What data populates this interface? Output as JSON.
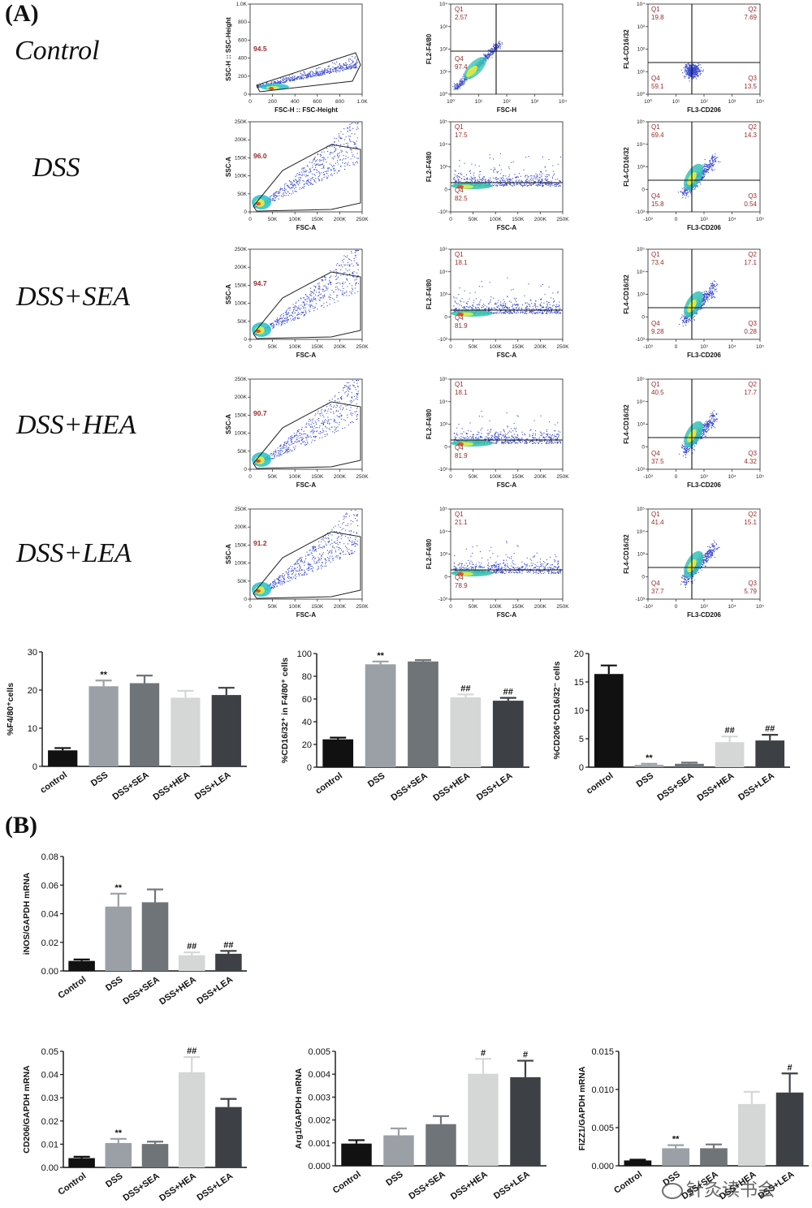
{
  "panels": {
    "a": "(A)",
    "b": "(B)"
  },
  "groups": [
    "Control",
    "DSS",
    "DSS+SEA",
    "DSS+HEA",
    "DSS+LEA"
  ],
  "watermark": "针灸读书会",
  "flow_rows": [
    {
      "gate": {
        "xlabel": "FSC-H :: FSC-Height",
        "ylabel": "SSC-H :: SSC-Height",
        "xticks": [
          "0",
          "200",
          "400",
          "600",
          "800",
          "1.0K"
        ],
        "yticks": [
          "0",
          "200",
          "400",
          "600",
          "800",
          "1.0K"
        ],
        "value": "94.5"
      },
      "f480": {
        "xlabel": "FSC-H",
        "ylabel": "FL2-F4/80",
        "xticks": [
          "10⁰",
          "10¹",
          "10²",
          "10³",
          "10⁴"
        ],
        "yticks": [
          "10⁰",
          "10¹",
          "10²",
          "10³",
          "10⁴"
        ],
        "q1": "2.57",
        "q4": "97.4"
      },
      "quad": {
        "xlabel": "FL3-CD206",
        "ylabel": "FL4-CD16/32",
        "xticks": [
          "10⁰",
          "10¹",
          "10²",
          "10³",
          "10⁴"
        ],
        "yticks": [
          "10⁰",
          "10¹",
          "10²",
          "10³",
          "10⁴"
        ],
        "q1": "19.8",
        "q2": "7.69",
        "q3": "13.5",
        "q4": "59.1"
      }
    },
    {
      "gate": {
        "xlabel": "FSC-A",
        "ylabel": "SSC-A",
        "xticks": [
          "0",
          "50K",
          "100K",
          "150K",
          "200K",
          "250K"
        ],
        "yticks": [
          "0",
          "50K",
          "100K",
          "150K",
          "200K",
          "250K"
        ],
        "value": "96.0"
      },
      "f480": {
        "xlabel": "FSC-A",
        "ylabel": "FL2-F4/80",
        "xticks": [
          "0",
          "50K",
          "100K",
          "150K",
          "200K",
          "250K"
        ],
        "yticks": [
          "-10³",
          "0",
          "10³",
          "10⁴",
          "10⁵"
        ],
        "q1": "17.5",
        "q4": "82.5"
      },
      "quad": {
        "xlabel": "FL3-CD206",
        "ylabel": "FL4-CD16/32",
        "xticks": [
          "-10³",
          "0",
          "10³",
          "10⁴",
          "10⁵"
        ],
        "yticks": [
          "-10³",
          "0",
          "10³",
          "10⁴",
          "10⁵"
        ],
        "q1": "69.4",
        "q2": "14.3",
        "q3": "0.54",
        "q4": "15.8"
      }
    },
    {
      "gate": {
        "xlabel": "FSC-A",
        "ylabel": "SSC-A",
        "xticks": [
          "0",
          "50K",
          "100K",
          "150K",
          "200K",
          "250K"
        ],
        "yticks": [
          "0",
          "50K",
          "100K",
          "150K",
          "200K",
          "250K"
        ],
        "value": "94.7"
      },
      "f480": {
        "xlabel": "FSC-A",
        "ylabel": "FL2-F4/80",
        "xticks": [
          "0",
          "50K",
          "100K",
          "150K",
          "200K",
          "250K"
        ],
        "yticks": [
          "-10³",
          "0",
          "10³",
          "10⁴",
          "10⁵"
        ],
        "q1": "18.1",
        "q4": "81.9"
      },
      "quad": {
        "xlabel": "FL3-CD206",
        "ylabel": "FL4-CD16/32",
        "xticks": [
          "-10³",
          "0",
          "10³",
          "10⁴",
          "10⁵"
        ],
        "yticks": [
          "-10³",
          "0",
          "10³",
          "10⁴",
          "10⁵"
        ],
        "q1": "73.4",
        "q2": "17.1",
        "q3": "0.28",
        "q4": "9.28"
      }
    },
    {
      "gate": {
        "xlabel": "FSC-A",
        "ylabel": "SSC-A",
        "xticks": [
          "0",
          "50K",
          "100K",
          "150K",
          "200K",
          "250K"
        ],
        "yticks": [
          "0",
          "50K",
          "100K",
          "150K",
          "200K",
          "250K"
        ],
        "value": "90.7"
      },
      "f480": {
        "xlabel": "FSC-A",
        "ylabel": "FL2-F4/80",
        "xticks": [
          "0",
          "50K",
          "100K",
          "150K",
          "200K",
          "250K"
        ],
        "yticks": [
          "-10³",
          "0",
          "10³",
          "10⁴",
          "10⁵"
        ],
        "q1": "18.1",
        "q4": "81.9"
      },
      "quad": {
        "xlabel": "FL3-CD206",
        "ylabel": "FL4-CD16/32",
        "xticks": [
          "-10³",
          "0",
          "10³",
          "10⁴",
          "10⁵"
        ],
        "yticks": [
          "-10³",
          "0",
          "10³",
          "10⁴",
          "10⁵"
        ],
        "q1": "40.5",
        "q2": "17.7",
        "q3": "4.32",
        "q4": "37.5"
      }
    },
    {
      "gate": {
        "xlabel": "FSC-A",
        "ylabel": "SSC-A",
        "xticks": [
          "0",
          "50K",
          "100K",
          "150K",
          "200K",
          "250K"
        ],
        "yticks": [
          "0",
          "50K",
          "100K",
          "150K",
          "200K",
          "250K"
        ],
        "value": "91.2"
      },
      "f480": {
        "xlabel": "FSC-A",
        "ylabel": "FL2-F4/80",
        "xticks": [
          "0",
          "50K",
          "100K",
          "150K",
          "200K",
          "250K"
        ],
        "yticks": [
          "-10³",
          "0",
          "10³",
          "10⁴",
          "10⁵"
        ],
        "q1": "21.1",
        "q4": "78.9"
      },
      "quad": {
        "xlabel": "FL3-CD206",
        "ylabel": "FL4-CD16/32",
        "xticks": [
          "-10³",
          "0",
          "10³",
          "10⁴",
          "10⁵"
        ],
        "yticks": [
          "-10³",
          "0",
          "10³",
          "10⁴",
          "10⁵"
        ],
        "q1": "41.4",
        "q2": "15.1",
        "q3": "5.79",
        "q4": "37.7"
      }
    }
  ],
  "colors": [
    "#111111",
    "#9aa0a6",
    "#6f7478",
    "#d5d7d6",
    "#3d4145"
  ],
  "chart_data": [
    {
      "type": "bar",
      "ylabel": "%F4/80⁺cells",
      "categories": [
        "control",
        "DSS",
        "DSS+SEA",
        "DSS+HEA",
        "DSS+LEA"
      ],
      "values": [
        4.2,
        21.0,
        21.8,
        18.0,
        18.7
      ],
      "errors": [
        0.6,
        1.5,
        2.0,
        1.8,
        1.9
      ],
      "annotations": [
        "",
        "**",
        "",
        "",
        ""
      ],
      "ylim": [
        0,
        30
      ],
      "yticks": [
        0,
        10,
        20,
        30
      ]
    },
    {
      "type": "bar",
      "ylabel": "%CD16/32⁺ in F4/80⁺ cells",
      "categories": [
        "control",
        "DSS",
        "DSS+SEA",
        "DSS+HEA",
        "DSS+LEA"
      ],
      "values": [
        24.5,
        90.5,
        93.0,
        61.5,
        58.5
      ],
      "errors": [
        1.5,
        2.5,
        1.2,
        2.5,
        2.5
      ],
      "annotations": [
        "",
        "**",
        "",
        "##",
        "##"
      ],
      "ylim": [
        0,
        100
      ],
      "yticks": [
        0,
        20,
        40,
        60,
        80,
        100
      ]
    },
    {
      "type": "bar",
      "ylabel": "%CD206⁺CD16/32⁻ cells",
      "categories": [
        "control",
        "DSS",
        "DSS+SEA",
        "DSS+HEA",
        "DSS+LEA"
      ],
      "values": [
        16.4,
        0.4,
        0.6,
        4.4,
        4.7
      ],
      "errors": [
        1.5,
        0.2,
        0.2,
        1.0,
        1.0
      ],
      "annotations": [
        "",
        "**",
        "",
        "##",
        "##"
      ],
      "ylim": [
        0,
        20
      ],
      "yticks": [
        0,
        5,
        10,
        15,
        20
      ]
    },
    {
      "type": "bar",
      "ylabel": "iNOS/GAPDH mRNA",
      "categories": [
        "Control",
        "DSS",
        "DSS+SEA",
        "DSS+HEA",
        "DSS+LEA"
      ],
      "values": [
        0.007,
        0.045,
        0.048,
        0.011,
        0.012
      ],
      "errors": [
        0.001,
        0.009,
        0.009,
        0.002,
        0.002
      ],
      "annotations": [
        "",
        "**",
        "",
        "##",
        "##"
      ],
      "ylim": [
        0,
        0.08
      ],
      "yticks": [
        "0.00",
        "0.02",
        "0.04",
        "0.06",
        "0.08"
      ]
    },
    {
      "type": "bar",
      "ylabel": "CD206/GAPDH mRNA",
      "categories": [
        "Control",
        "DSS",
        "DSS+SEA",
        "DSS+HEA",
        "DSS+LEA"
      ],
      "values": [
        0.004,
        0.0105,
        0.0101,
        0.041,
        0.026
      ],
      "errors": [
        0.0006,
        0.0018,
        0.001,
        0.0065,
        0.0035
      ],
      "annotations": [
        "",
        "**",
        "",
        "##",
        ""
      ],
      "ylim": [
        0,
        0.05
      ],
      "yticks": [
        "0.00",
        "0.01",
        "0.02",
        "0.03",
        "0.04",
        "0.05"
      ]
    },
    {
      "type": "bar",
      "ylabel": "Arg1/GAPDH mRNA",
      "categories": [
        "Control",
        "DSS",
        "DSS+SEA",
        "DSS+HEA",
        "DSS+LEA"
      ],
      "values": [
        0.00097,
        0.00133,
        0.00182,
        0.00402,
        0.00387
      ],
      "errors": [
        0.00015,
        0.0003,
        0.00035,
        0.00065,
        0.00072
      ],
      "annotations": [
        "",
        "",
        "",
        "#",
        "#"
      ],
      "ylim": [
        0,
        0.005
      ],
      "yticks": [
        "0.000",
        "0.001",
        "0.002",
        "0.003",
        "0.004",
        "0.005"
      ]
    },
    {
      "type": "bar",
      "ylabel": "FIZZ1/GAPDH mRNA",
      "categories": [
        "Control",
        "DSS",
        "DSS+SEA",
        "DSS+HEA",
        "DSS+LEA"
      ],
      "values": [
        0.0007,
        0.0023,
        0.0023,
        0.0081,
        0.0096
      ],
      "errors": [
        0.0001,
        0.0004,
        0.0005,
        0.0016,
        0.0025
      ],
      "annotations": [
        "",
        "**",
        "",
        "",
        "#"
      ],
      "ylim": [
        0,
        0.015
      ],
      "yticks": [
        "0.000",
        "0.005",
        "0.010",
        "0.015"
      ]
    }
  ]
}
